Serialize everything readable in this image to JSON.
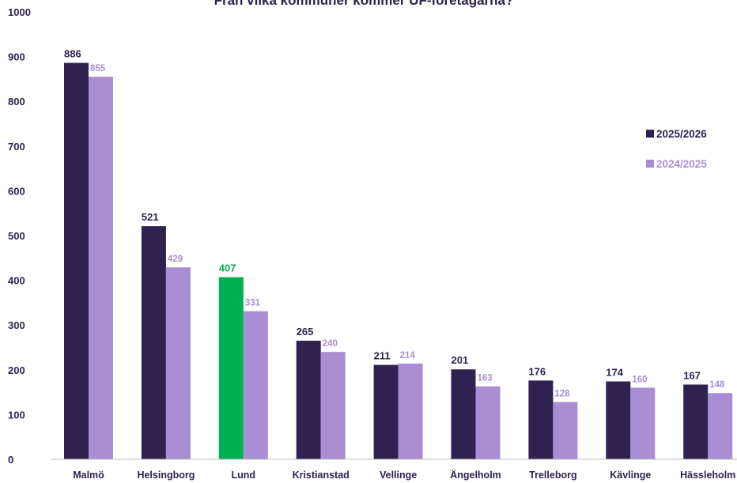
{
  "chart_data": {
    "type": "bar",
    "title": "Från vilka kommuner kommer UF-företagarna?",
    "categories": [
      "Malmö",
      "Helsingborg",
      "Lund",
      "Kristianstad",
      "Vellinge",
      "Ängelholm",
      "Trelleborg",
      "Kävlinge",
      "Hässleholm"
    ],
    "series": [
      {
        "name": "2025/2026",
        "values": [
          886,
          521,
          407,
          265,
          211,
          201,
          176,
          174,
          167
        ],
        "color": "#2f2250"
      },
      {
        "name": "2024/2025",
        "values": [
          855,
          429,
          331,
          240,
          214,
          163,
          128,
          160,
          148
        ],
        "color": "#a98ed4"
      }
    ],
    "highlight": {
      "category": "Lund",
      "series": "2025/2026",
      "color": "#00b050"
    },
    "yticks": [
      "0",
      "100",
      "200",
      "300",
      "400",
      "500",
      "600",
      "700",
      "800",
      "900",
      "1000"
    ],
    "ylim": [
      0,
      1000
    ],
    "xlabel": "",
    "ylabel": "",
    "grid": false,
    "legend": "right"
  }
}
